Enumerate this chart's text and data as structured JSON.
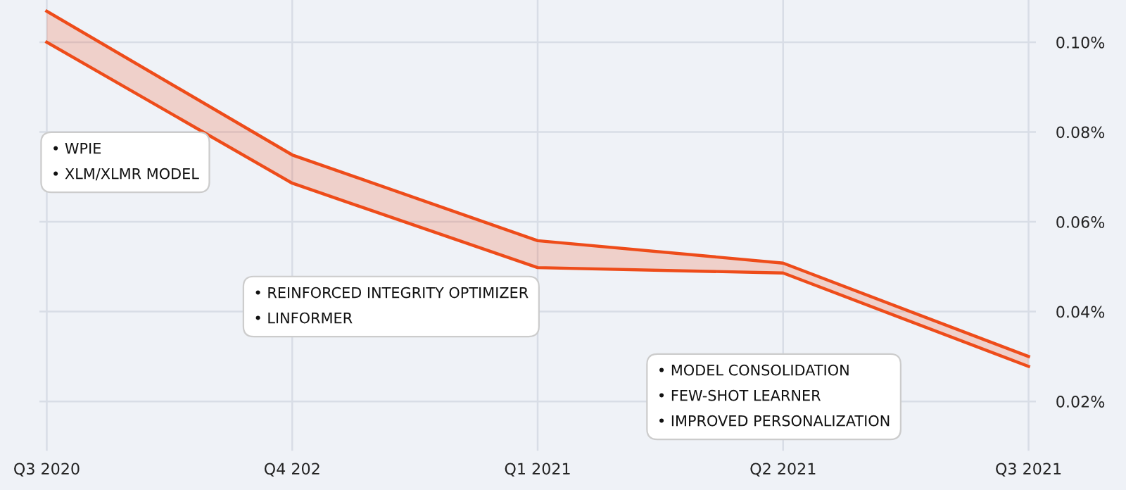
{
  "chart_data": {
    "type": "line",
    "categories": [
      "Q3 2020",
      "Q4 202",
      "Q1 2021",
      "Q2 2021",
      "Q3 2021"
    ],
    "series": [
      {
        "type": "area",
        "color": "#ee4c1a",
        "values": [
          0.1069,
          0.0749,
          0.0558,
          0.0508,
          0.03
        ]
      },
      {
        "color": "#ee4c1a",
        "values": [
          0.1,
          0.0686,
          0.0498,
          0.0486,
          0.0278
        ]
      }
    ],
    "ylim": [
      0.009,
      0.1094
    ],
    "yticks": [
      {
        "value": 0.02,
        "label": "0.02%"
      },
      {
        "value": 0.04,
        "label": "0.04%"
      },
      {
        "value": 0.06,
        "label": "0.06%"
      },
      {
        "value": 0.08,
        "label": "0.08%"
      },
      {
        "value": 0.1,
        "label": "0.10%"
      }
    ],
    "grid": true,
    "annotations": [
      "• WPIE\n• XLM/XLMR MODEL",
      "• REINFORCED INTEGRITY OPTIMIZER\n• LINFORMER",
      "• MODEL CONSOLIDATION\n• FEW-SHOT LEARNER\n• IMPROVED PERSONALIZATION"
    ]
  }
}
